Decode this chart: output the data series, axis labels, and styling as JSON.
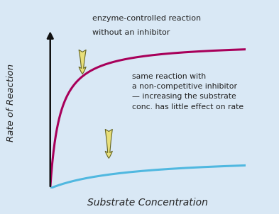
{
  "background_color": "#d9e8f5",
  "curve1_color": "#a8005a",
  "curve2_color": "#50b8e0",
  "axis_color": "#111111",
  "arrow_face_color": "#e8df7a",
  "arrow_edge_color": "#666622",
  "text_color": "#222222",
  "title1_line1": "enzyme-controlled reaction",
  "title1_line2": "without an inhibitor",
  "title2": "same reaction with\na non-competitive inhibitor\n— increasing the substrate\nconc. has little effect on rate",
  "xlabel": "Substrate Concentration",
  "ylabel": "Rate of Reaction",
  "curve1_km": 0.05,
  "curve1_vmax": 1.0,
  "curve2_km": 0.4,
  "curve2_vmax": 0.22,
  "x_range": [
    0,
    1.0
  ],
  "y_range": [
    0,
    1.1
  ]
}
